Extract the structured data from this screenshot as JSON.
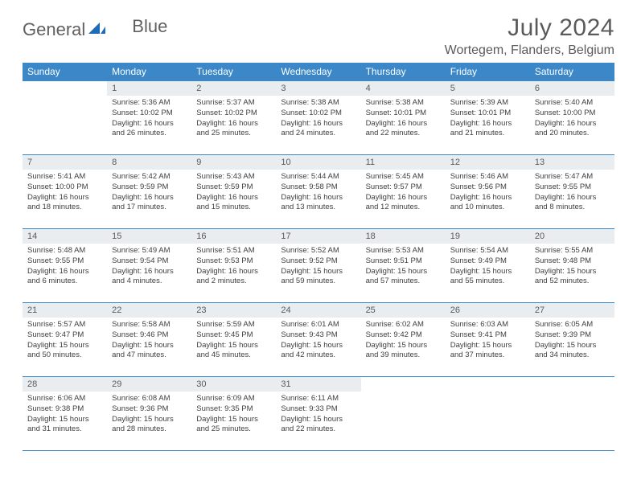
{
  "brand": {
    "part1": "General",
    "part2": "Blue"
  },
  "colors": {
    "header_bg": "#3b87c8",
    "header_text": "#ffffff",
    "daynum_bg": "#e9edf0",
    "text_gray": "#5a5a5a",
    "body_text": "#404040",
    "rule": "#3b87c8",
    "logo_blue": "#1e6bb8"
  },
  "title": "July 2024",
  "location": "Wortegem, Flanders, Belgium",
  "weekdays": [
    "Sunday",
    "Monday",
    "Tuesday",
    "Wednesday",
    "Thursday",
    "Friday",
    "Saturday"
  ],
  "start_offset": 1,
  "days": [
    {
      "n": "1",
      "sr": "5:36 AM",
      "ss": "10:02 PM",
      "dl": "16 hours and 26 minutes."
    },
    {
      "n": "2",
      "sr": "5:37 AM",
      "ss": "10:02 PM",
      "dl": "16 hours and 25 minutes."
    },
    {
      "n": "3",
      "sr": "5:38 AM",
      "ss": "10:02 PM",
      "dl": "16 hours and 24 minutes."
    },
    {
      "n": "4",
      "sr": "5:38 AM",
      "ss": "10:01 PM",
      "dl": "16 hours and 22 minutes."
    },
    {
      "n": "5",
      "sr": "5:39 AM",
      "ss": "10:01 PM",
      "dl": "16 hours and 21 minutes."
    },
    {
      "n": "6",
      "sr": "5:40 AM",
      "ss": "10:00 PM",
      "dl": "16 hours and 20 minutes."
    },
    {
      "n": "7",
      "sr": "5:41 AM",
      "ss": "10:00 PM",
      "dl": "16 hours and 18 minutes."
    },
    {
      "n": "8",
      "sr": "5:42 AM",
      "ss": "9:59 PM",
      "dl": "16 hours and 17 minutes."
    },
    {
      "n": "9",
      "sr": "5:43 AM",
      "ss": "9:59 PM",
      "dl": "16 hours and 15 minutes."
    },
    {
      "n": "10",
      "sr": "5:44 AM",
      "ss": "9:58 PM",
      "dl": "16 hours and 13 minutes."
    },
    {
      "n": "11",
      "sr": "5:45 AM",
      "ss": "9:57 PM",
      "dl": "16 hours and 12 minutes."
    },
    {
      "n": "12",
      "sr": "5:46 AM",
      "ss": "9:56 PM",
      "dl": "16 hours and 10 minutes."
    },
    {
      "n": "13",
      "sr": "5:47 AM",
      "ss": "9:55 PM",
      "dl": "16 hours and 8 minutes."
    },
    {
      "n": "14",
      "sr": "5:48 AM",
      "ss": "9:55 PM",
      "dl": "16 hours and 6 minutes."
    },
    {
      "n": "15",
      "sr": "5:49 AM",
      "ss": "9:54 PM",
      "dl": "16 hours and 4 minutes."
    },
    {
      "n": "16",
      "sr": "5:51 AM",
      "ss": "9:53 PM",
      "dl": "16 hours and 2 minutes."
    },
    {
      "n": "17",
      "sr": "5:52 AM",
      "ss": "9:52 PM",
      "dl": "15 hours and 59 minutes."
    },
    {
      "n": "18",
      "sr": "5:53 AM",
      "ss": "9:51 PM",
      "dl": "15 hours and 57 minutes."
    },
    {
      "n": "19",
      "sr": "5:54 AM",
      "ss": "9:49 PM",
      "dl": "15 hours and 55 minutes."
    },
    {
      "n": "20",
      "sr": "5:55 AM",
      "ss": "9:48 PM",
      "dl": "15 hours and 52 minutes."
    },
    {
      "n": "21",
      "sr": "5:57 AM",
      "ss": "9:47 PM",
      "dl": "15 hours and 50 minutes."
    },
    {
      "n": "22",
      "sr": "5:58 AM",
      "ss": "9:46 PM",
      "dl": "15 hours and 47 minutes."
    },
    {
      "n": "23",
      "sr": "5:59 AM",
      "ss": "9:45 PM",
      "dl": "15 hours and 45 minutes."
    },
    {
      "n": "24",
      "sr": "6:01 AM",
      "ss": "9:43 PM",
      "dl": "15 hours and 42 minutes."
    },
    {
      "n": "25",
      "sr": "6:02 AM",
      "ss": "9:42 PM",
      "dl": "15 hours and 39 minutes."
    },
    {
      "n": "26",
      "sr": "6:03 AM",
      "ss": "9:41 PM",
      "dl": "15 hours and 37 minutes."
    },
    {
      "n": "27",
      "sr": "6:05 AM",
      "ss": "9:39 PM",
      "dl": "15 hours and 34 minutes."
    },
    {
      "n": "28",
      "sr": "6:06 AM",
      "ss": "9:38 PM",
      "dl": "15 hours and 31 minutes."
    },
    {
      "n": "29",
      "sr": "6:08 AM",
      "ss": "9:36 PM",
      "dl": "15 hours and 28 minutes."
    },
    {
      "n": "30",
      "sr": "6:09 AM",
      "ss": "9:35 PM",
      "dl": "15 hours and 25 minutes."
    },
    {
      "n": "31",
      "sr": "6:11 AM",
      "ss": "9:33 PM",
      "dl": "15 hours and 22 minutes."
    }
  ],
  "labels": {
    "sunrise": "Sunrise:",
    "sunset": "Sunset:",
    "daylight": "Daylight:"
  }
}
